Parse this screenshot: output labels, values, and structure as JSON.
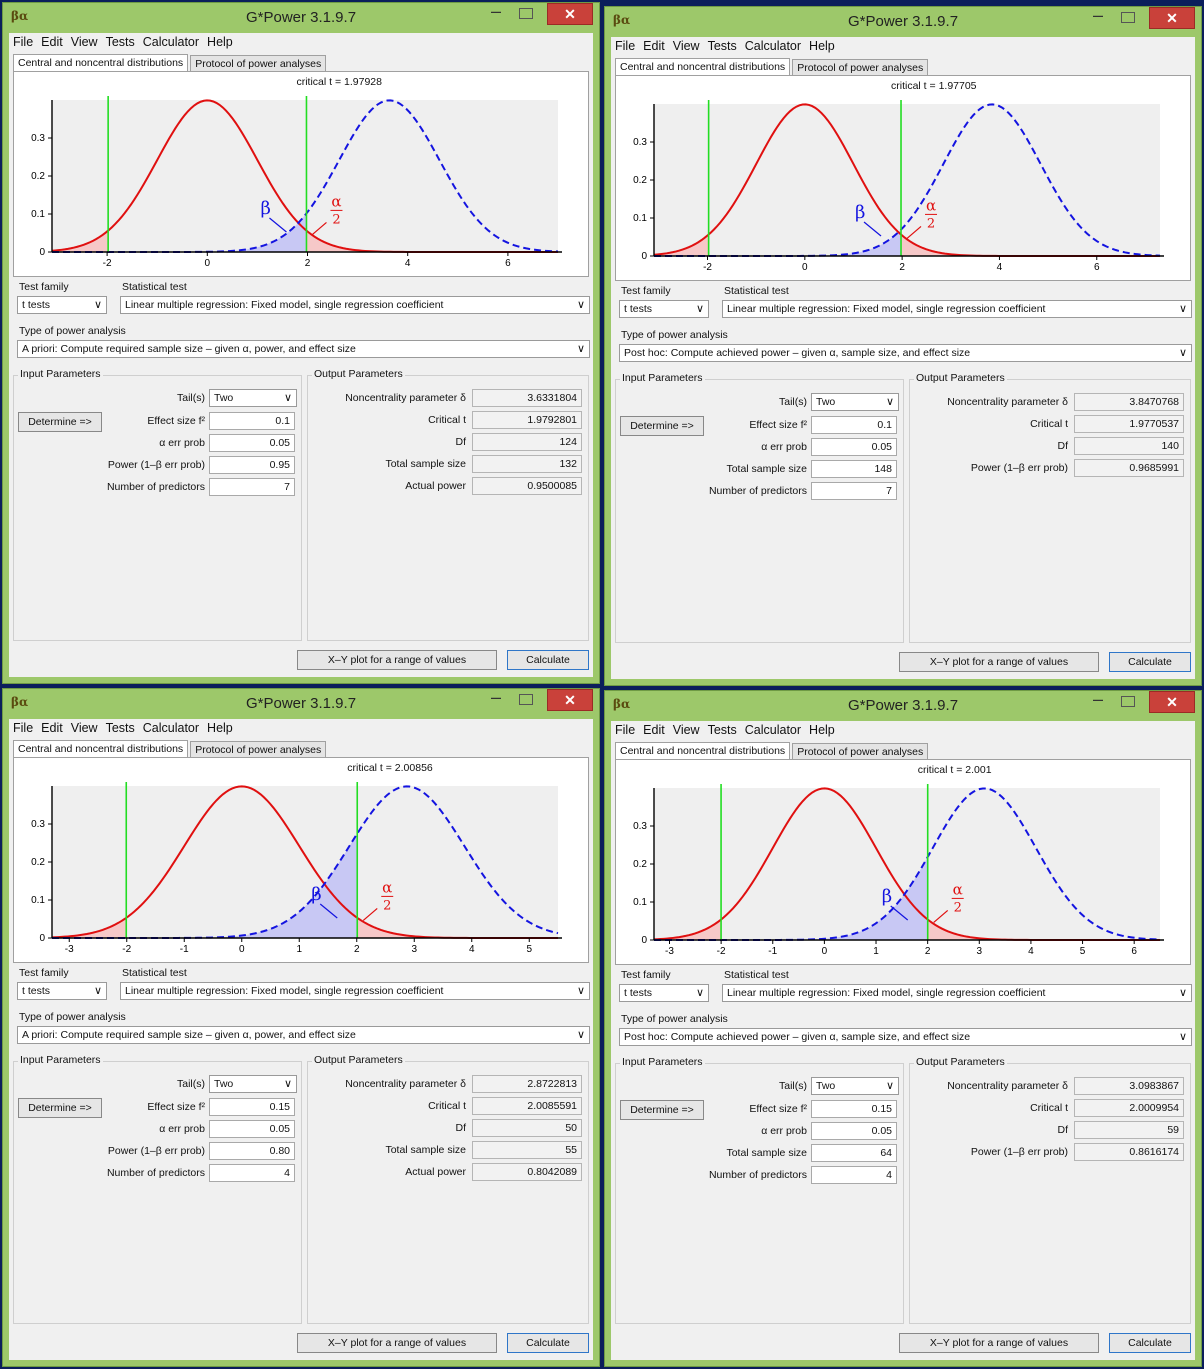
{
  "windows": [
    {
      "title": "G*Power 3.1.9.7",
      "menu": [
        "File",
        "Edit",
        "View",
        "Tests",
        "Calculator",
        "Help"
      ],
      "tabs": [
        "Central and noncentral distributions",
        "Protocol of power analyses"
      ],
      "critical_label": "critical t =  1.97928",
      "chart_data": {
        "type": "line",
        "x_ticks": [
          "-2",
          "0",
          "2",
          "4",
          "6"
        ],
        "y_ticks": [
          "0",
          "0.1",
          "0.2",
          "0.3"
        ],
        "xlim": [
          -3.1,
          7.0
        ],
        "ylim": [
          0,
          0.4
        ],
        "critical_t": 1.97928,
        "noncentrality": 3.6331804,
        "series": [],
        "annotations": [
          "β",
          "α",
          "2"
        ],
        "colors": {
          "central": "#e01010",
          "noncentral": "#1414e0",
          "critical": "#22dd22",
          "alpha_fill": "#f6c8c8",
          "beta_fill": "#c8c8f4"
        }
      },
      "test_family_label": "Test family",
      "test_family": "t tests",
      "statistical_test_label": "Statistical test",
      "statistical_test": "Linear multiple regression: Fixed model, single regression coefficient",
      "power_type_label": "Type of power analysis",
      "power_type": "A priori: Compute required sample size – given α, power, and effect size",
      "input_label": "Input Parameters",
      "output_label": "Output Parameters",
      "determine": "Determine =>",
      "tails_label": "Tail(s)",
      "tails": "Two",
      "inputs": [
        {
          "label": "Effect size f²",
          "value": "0.1"
        },
        {
          "label": "α err prob",
          "value": "0.05"
        },
        {
          "label": "Power (1–β err prob)",
          "value": "0.95"
        },
        {
          "label": "Number of predictors",
          "value": "7"
        }
      ],
      "outputs": [
        {
          "label": "Noncentrality parameter δ",
          "value": "3.6331804"
        },
        {
          "label": "Critical t",
          "value": "1.9792801"
        },
        {
          "label": "Df",
          "value": "124"
        },
        {
          "label": "Total sample size",
          "value": "132"
        },
        {
          "label": "Actual power",
          "value": "0.9500085"
        }
      ],
      "xy_button": "X–Y plot for a range of values",
      "calc_button": "Calculate"
    },
    {
      "title": "G*Power 3.1.9.7",
      "menu": [
        "File",
        "Edit",
        "View",
        "Tests",
        "Calculator",
        "Help"
      ],
      "tabs": [
        "Central and noncentral distributions",
        "Protocol of power analyses"
      ],
      "critical_label": "critical t =  1.97705",
      "chart_data": {
        "type": "line",
        "x_ticks": [
          "-2",
          "0",
          "2",
          "4",
          "6"
        ],
        "y_ticks": [
          "0",
          "0.1",
          "0.2",
          "0.3"
        ],
        "xlim": [
          -3.1,
          7.3
        ],
        "ylim": [
          0,
          0.4
        ],
        "critical_t": 1.97705,
        "noncentrality": 3.8470768,
        "series": [],
        "annotations": [
          "β",
          "α",
          "2"
        ],
        "colors": {
          "central": "#e01010",
          "noncentral": "#1414e0",
          "critical": "#22dd22",
          "alpha_fill": "#f6c8c8",
          "beta_fill": "#c8c8f4"
        }
      },
      "test_family_label": "Test family",
      "test_family": "t tests",
      "statistical_test_label": "Statistical test",
      "statistical_test": "Linear multiple regression: Fixed model, single regression coefficient",
      "power_type_label": "Type of power analysis",
      "power_type": "Post hoc: Compute achieved power – given α, sample size, and effect size",
      "input_label": "Input Parameters",
      "output_label": "Output Parameters",
      "determine": "Determine =>",
      "tails_label": "Tail(s)",
      "tails": "Two",
      "inputs": [
        {
          "label": "Effect size f²",
          "value": "0.1"
        },
        {
          "label": "α err prob",
          "value": "0.05"
        },
        {
          "label": "Total sample size",
          "value": "148"
        },
        {
          "label": "Number of predictors",
          "value": "7"
        }
      ],
      "outputs": [
        {
          "label": "Noncentrality parameter δ",
          "value": "3.8470768"
        },
        {
          "label": "Critical t",
          "value": "1.9770537"
        },
        {
          "label": "Df",
          "value": "140"
        },
        {
          "label": "Power (1–β err prob)",
          "value": "0.9685991"
        }
      ],
      "xy_button": "X–Y plot for a range of values",
      "calc_button": "Calculate"
    },
    {
      "title": "G*Power 3.1.9.7",
      "menu": [
        "File",
        "Edit",
        "View",
        "Tests",
        "Calculator",
        "Help"
      ],
      "tabs": [
        "Central and noncentral distributions",
        "Protocol of power analyses"
      ],
      "critical_label": "critical t =  2.00856",
      "chart_data": {
        "type": "line",
        "x_ticks": [
          "-3",
          "-2",
          "-1",
          "0",
          "1",
          "2",
          "3",
          "4",
          "5"
        ],
        "y_ticks": [
          "0",
          "0.1",
          "0.2",
          "0.3"
        ],
        "xlim": [
          -3.3,
          5.5
        ],
        "ylim": [
          0,
          0.4
        ],
        "critical_t": 2.00856,
        "noncentrality": 2.8722813,
        "series": [],
        "annotations": [
          "β",
          "α",
          "2"
        ],
        "colors": {
          "central": "#e01010",
          "noncentral": "#1414e0",
          "critical": "#22dd22",
          "alpha_fill": "#f6c8c8",
          "beta_fill": "#c8c8f4"
        }
      },
      "test_family_label": "Test family",
      "test_family": "t tests",
      "statistical_test_label": "Statistical test",
      "statistical_test": "Linear multiple regression: Fixed model, single regression coefficient",
      "power_type_label": "Type of power analysis",
      "power_type": "A priori: Compute required sample size – given α, power, and effect size",
      "input_label": "Input Parameters",
      "output_label": "Output Parameters",
      "determine": "Determine =>",
      "tails_label": "Tail(s)",
      "tails": "Two",
      "inputs": [
        {
          "label": "Effect size f²",
          "value": "0.15"
        },
        {
          "label": "α err prob",
          "value": "0.05"
        },
        {
          "label": "Power (1–β err prob)",
          "value": "0.80"
        },
        {
          "label": "Number of predictors",
          "value": "4"
        }
      ],
      "outputs": [
        {
          "label": "Noncentrality parameter δ",
          "value": "2.8722813"
        },
        {
          "label": "Critical t",
          "value": "2.0085591"
        },
        {
          "label": "Df",
          "value": "50"
        },
        {
          "label": "Total sample size",
          "value": "55"
        },
        {
          "label": "Actual power",
          "value": "0.8042089"
        }
      ],
      "xy_button": "X–Y plot for a range of values",
      "calc_button": "Calculate"
    },
    {
      "title": "G*Power 3.1.9.7",
      "menu": [
        "File",
        "Edit",
        "View",
        "Tests",
        "Calculator",
        "Help"
      ],
      "tabs": [
        "Central and noncentral distributions",
        "Protocol of power analyses"
      ],
      "critical_label": "critical t =  2.001",
      "chart_data": {
        "type": "line",
        "x_ticks": [
          "-3",
          "-2",
          "-1",
          "0",
          "1",
          "2",
          "3",
          "4",
          "5",
          "6"
        ],
        "y_ticks": [
          "0",
          "0.1",
          "0.2",
          "0.3"
        ],
        "xlim": [
          -3.3,
          6.5
        ],
        "ylim": [
          0,
          0.4
        ],
        "critical_t": 2.001,
        "noncentrality": 3.0983867,
        "series": [],
        "annotations": [
          "β",
          "α",
          "2"
        ],
        "colors": {
          "central": "#e01010",
          "noncentral": "#1414e0",
          "critical": "#22dd22",
          "alpha_fill": "#f6c8c8",
          "beta_fill": "#c8c8f4"
        }
      },
      "test_family_label": "Test family",
      "test_family": "t tests",
      "statistical_test_label": "Statistical test",
      "statistical_test": "Linear multiple regression: Fixed model, single regression coefficient",
      "power_type_label": "Type of power analysis",
      "power_type": "Post hoc: Compute achieved power – given α, sample size, and effect size",
      "input_label": "Input Parameters",
      "output_label": "Output Parameters",
      "determine": "Determine =>",
      "tails_label": "Tail(s)",
      "tails": "Two",
      "inputs": [
        {
          "label": "Effect size f²",
          "value": "0.15"
        },
        {
          "label": "α err prob",
          "value": "0.05"
        },
        {
          "label": "Total sample size",
          "value": "64"
        },
        {
          "label": "Number of predictors",
          "value": "4"
        }
      ],
      "outputs": [
        {
          "label": "Noncentrality parameter δ",
          "value": "3.0983867"
        },
        {
          "label": "Critical t",
          "value": "2.0009954"
        },
        {
          "label": "Df",
          "value": "59"
        },
        {
          "label": "Power (1–β err prob)",
          "value": "0.8616174"
        }
      ],
      "xy_button": "X–Y plot for a range of values",
      "calc_button": "Calculate"
    }
  ]
}
